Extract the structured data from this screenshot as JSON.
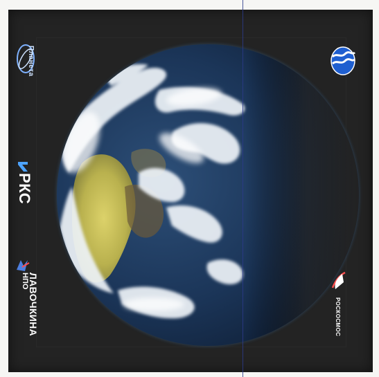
{
  "logos": {
    "planeta": {
      "label": "Планета",
      "icon": "planeta-icon"
    },
    "rks": {
      "label": "РКС",
      "icon": "rks-icon"
    },
    "npo": {
      "top": "НПО",
      "name": "ЛАВОЧКИНА",
      "icon": "npo-icon"
    },
    "roscosmos": {
      "label": "РОСКОСМОС",
      "icon": "roscosmos-icon"
    },
    "emblem": {
      "icon": "earth-water-emblem-icon"
    }
  },
  "colors": {
    "background": "#232323",
    "paper": "#f6f6f4",
    "fold_line": "#2b3a8a",
    "ocean": "#1c3b63",
    "land": "#c9c25a",
    "clouds": "#e8eef5",
    "emblem_blue": "#1f5fd0"
  }
}
